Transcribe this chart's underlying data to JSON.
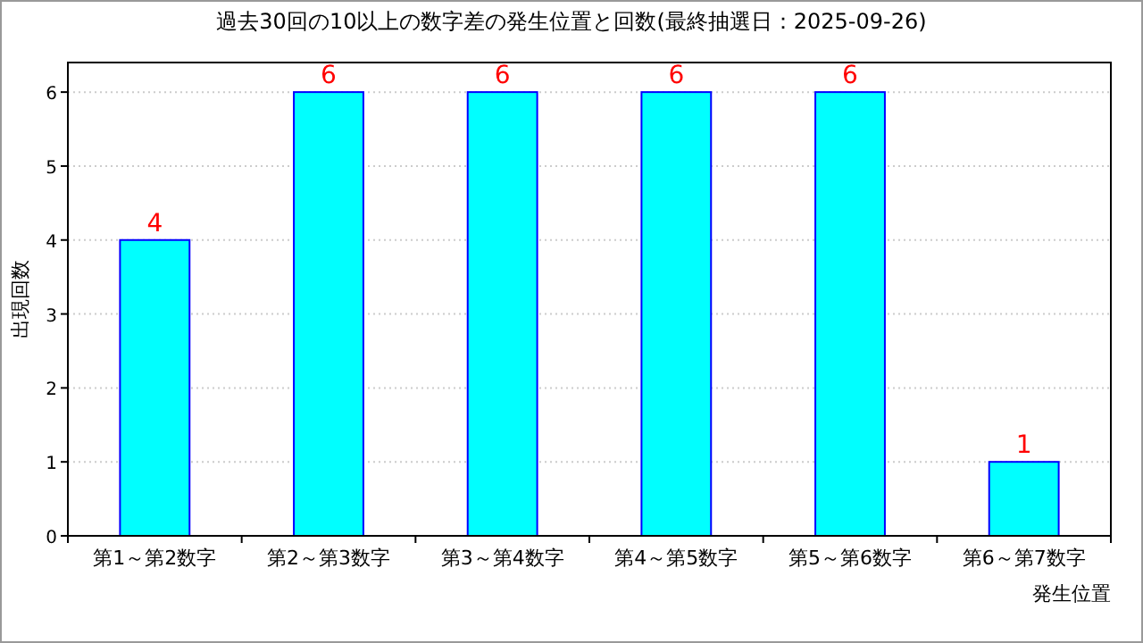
{
  "chart_data": {
    "type": "bar",
    "title": "過去30回の10以上の数字差の発生位置と回数(最終抽選日：2025-09-26)",
    "xlabel": "発生位置",
    "ylabel": "出現回数",
    "categories": [
      "第1～第2数字",
      "第2～第3数字",
      "第3～第4数字",
      "第4～第5数字",
      "第5～第6数字",
      "第6～第7数字"
    ],
    "values": [
      4,
      6,
      6,
      6,
      6,
      1
    ],
    "color": "#00ffff",
    "ylim": [
      0,
      6.4
    ],
    "yticks": [
      0,
      1,
      2,
      3,
      4,
      5,
      6
    ],
    "grid": "y",
    "data_labels": true
  }
}
